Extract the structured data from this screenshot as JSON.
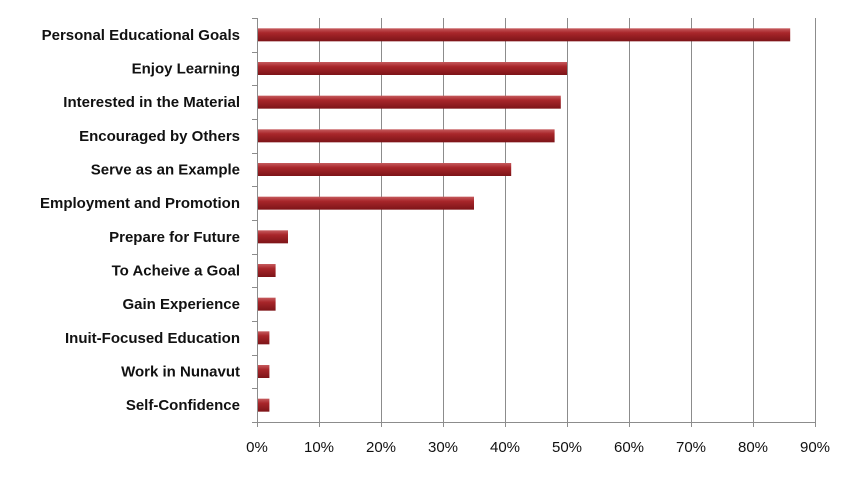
{
  "chart_data": {
    "type": "bar",
    "orientation": "horizontal",
    "title": "",
    "xlabel": "",
    "ylabel": "",
    "categories": [
      "Personal Educational Goals",
      "Enjoy Learning",
      "Interested in the Material",
      "Encouraged by Others",
      "Serve as an Example",
      "Employment and Promotion",
      "Prepare for Future",
      "To Acheive a Goal",
      "Gain Experience",
      "Inuit-Focused Education",
      "Work in Nunavut",
      "Self-Confidence"
    ],
    "values": [
      86,
      50,
      49,
      48,
      41,
      35,
      5,
      3,
      3,
      2,
      2,
      2
    ],
    "xlim": [
      0,
      90
    ],
    "xticks": [
      0,
      10,
      20,
      30,
      40,
      50,
      60,
      70,
      80,
      90
    ],
    "xtick_labels": [
      "0%",
      "10%",
      "20%",
      "30%",
      "40%",
      "50%",
      "60%",
      "70%",
      "80%",
      "90%"
    ],
    "value_unit": "percent",
    "grid": "vertical",
    "legend": "none",
    "bar_color": "#a8262a",
    "bar_color_light": "#c65b5e",
    "bar_color_dark": "#7d1418",
    "axis_color": "#8c8c8c",
    "grid_color": "#8c8c8c"
  }
}
